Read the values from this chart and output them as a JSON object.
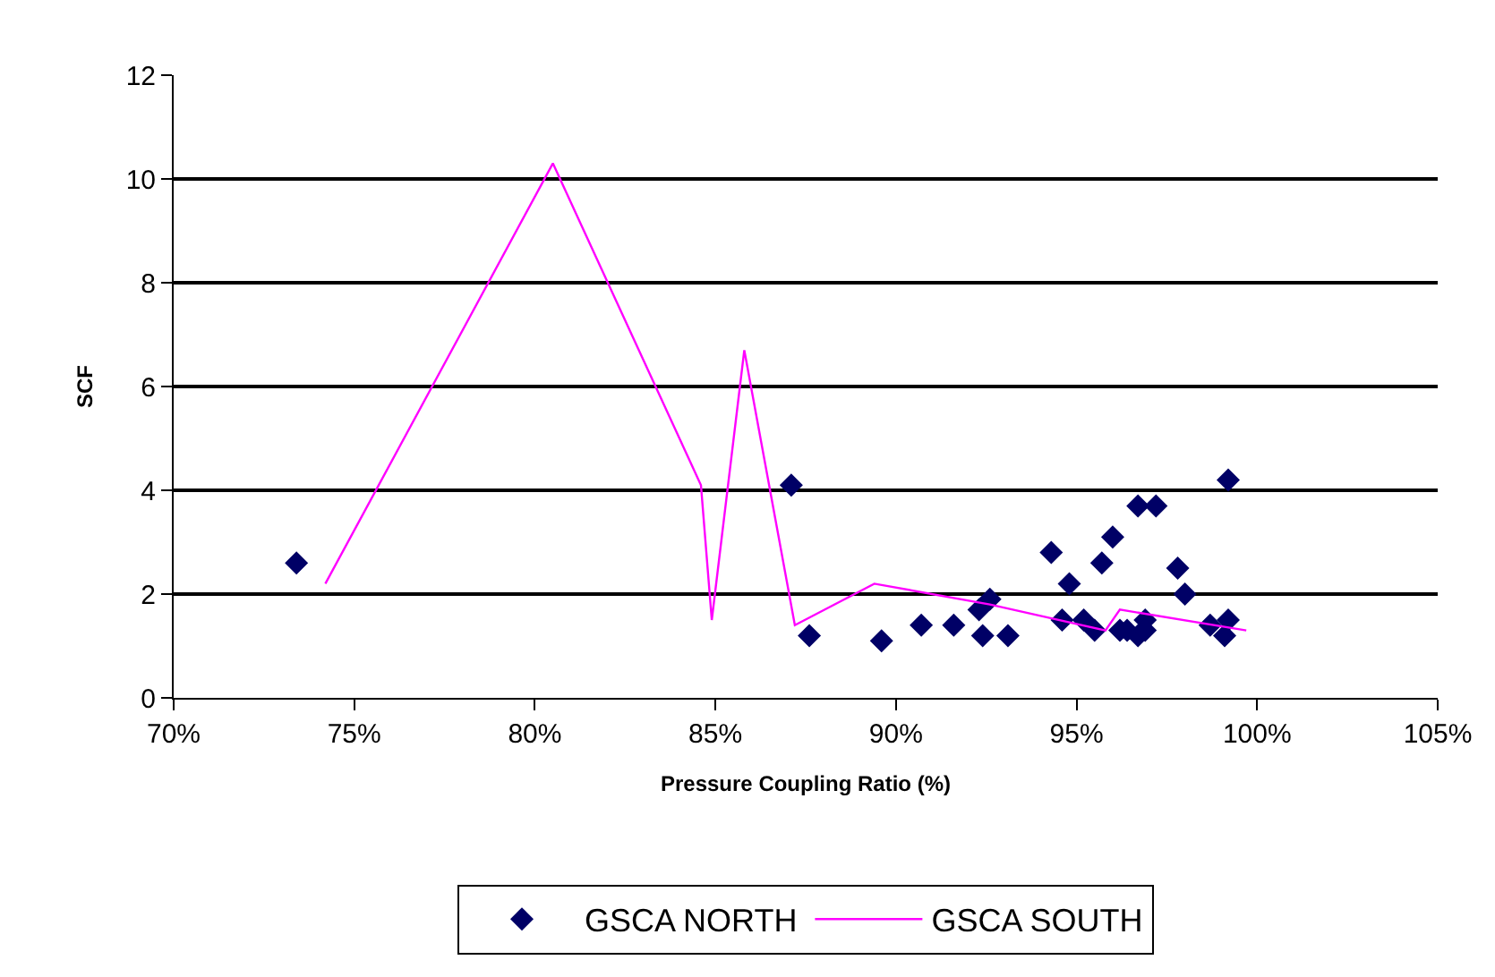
{
  "chart_data": {
    "type": "scatter",
    "xlabel": "Pressure Coupling Ratio (%)",
    "ylabel": "SCF",
    "xlim": [
      70,
      105
    ],
    "xticks": [
      {
        "value": 70,
        "label": "70%"
      },
      {
        "value": 75,
        "label": "75%"
      },
      {
        "value": 80,
        "label": "80%"
      },
      {
        "value": 85,
        "label": "85%"
      },
      {
        "value": 90,
        "label": "90%"
      },
      {
        "value": 95,
        "label": "95%"
      },
      {
        "value": 100,
        "label": "100%"
      },
      {
        "value": 105,
        "label": "105%"
      }
    ],
    "ylim": [
      0,
      12
    ],
    "yticks": [
      0,
      2,
      4,
      6,
      8,
      10,
      12
    ],
    "grid": "y",
    "legend": "bottom",
    "marker": "diamond",
    "series": [
      {
        "name": "GSCA NORTH",
        "color": "#000066",
        "x": [
          73.4,
          87.1,
          87.6,
          89.6,
          90.7,
          91.6,
          92.3,
          92.6,
          92.4,
          93.1,
          94.3,
          94.6,
          94.8,
          95.2,
          95.5,
          95.7,
          96.0,
          96.2,
          96.4,
          96.7,
          96.7,
          96.9,
          96.9,
          97.2,
          97.8,
          98.0,
          98.7,
          99.2,
          99.2,
          99.1
        ],
        "values": [
          2.6,
          4.1,
          1.2,
          1.1,
          1.4,
          1.4,
          1.7,
          1.9,
          1.2,
          1.2,
          2.8,
          1.5,
          2.2,
          1.5,
          1.3,
          2.6,
          3.1,
          1.3,
          1.3,
          3.7,
          1.2,
          1.5,
          1.3,
          3.7,
          2.5,
          2.0,
          1.4,
          4.2,
          1.5,
          1.2
        ]
      },
      {
        "name": "GSCA SOUTH",
        "type": "line",
        "marker": "none",
        "color": "#ff00ff",
        "x": [
          74.2,
          80.5,
          84.6,
          84.9,
          85.8,
          87.2,
          89.4,
          92.6,
          95.8,
          96.2,
          99.7
        ],
        "values": [
          2.2,
          10.3,
          4.1,
          1.5,
          6.7,
          1.4,
          2.2,
          1.8,
          1.3,
          1.7,
          1.3
        ]
      }
    ]
  }
}
